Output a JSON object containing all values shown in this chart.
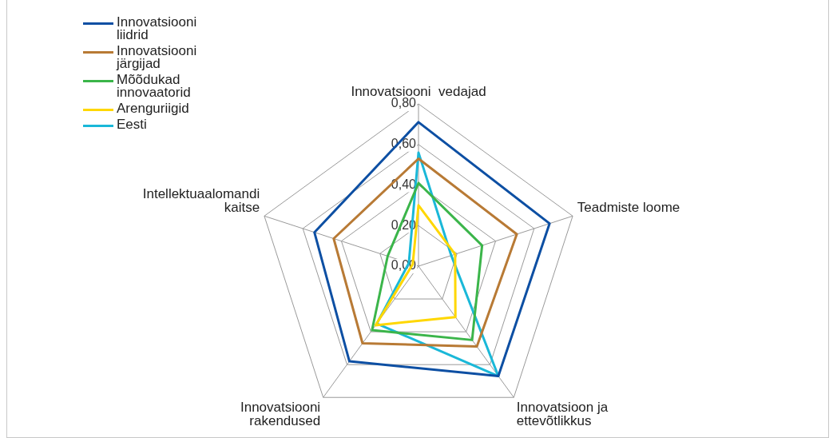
{
  "chart_data": {
    "type": "radar",
    "categories": [
      "Innovatsiooni  vedajad",
      "Teadmiste loome",
      "Innovatsioon ja\nettevõtlikkus",
      "Innovatsiooni\nrakendused",
      "Intellektuaalomandi\nkaitse"
    ],
    "series": [
      {
        "name": "Innovatsiooni\nliidrid",
        "color": "#0d4fa3",
        "values": [
          0.71,
          0.68,
          0.67,
          0.58,
          0.54
        ]
      },
      {
        "name": "Innovatsiooni\njärgijad",
        "color": "#b87a35",
        "values": [
          0.53,
          0.51,
          0.49,
          0.47,
          0.44
        ]
      },
      {
        "name": "Mõõdukad\ninnovaatorid",
        "color": "#3bb54a",
        "values": [
          0.41,
          0.33,
          0.45,
          0.39,
          0.16
        ]
      },
      {
        "name": "Arenguriigid",
        "color": "#ffd700",
        "values": [
          0.3,
          0.19,
          0.31,
          0.36,
          0.03
        ]
      },
      {
        "name": "Eesti",
        "color": "#1ab8d8",
        "values": [
          0.56,
          0.17,
          0.67,
          0.35,
          0.05
        ]
      }
    ],
    "ylim": [
      0,
      0.8
    ],
    "yticks": [
      {
        "value": 0,
        "label": "0,00"
      },
      {
        "value": 0.2,
        "label": "0,20"
      },
      {
        "value": 0.4,
        "label": "0,40"
      },
      {
        "value": 0.6,
        "label": "0,60"
      },
      {
        "value": 0.8,
        "label": "0,80"
      }
    ],
    "legend": "top left",
    "grid": true,
    "marker": "none",
    "line_style": "solid"
  }
}
